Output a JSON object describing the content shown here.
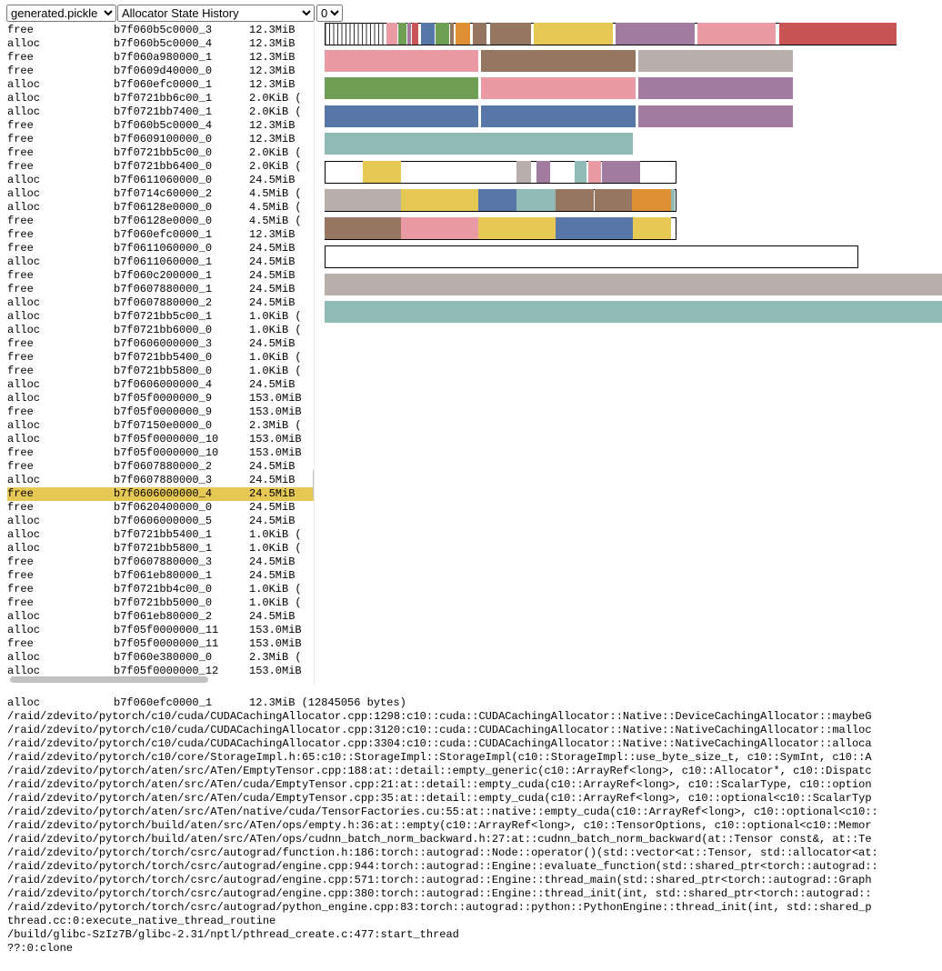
{
  "controls": {
    "file": "generated.pickle",
    "view": "Allocator State History",
    "device": "0"
  },
  "events": {
    "selected_row": 34,
    "rows": [
      [
        "free",
        "b7f060b5c0000_3",
        "12.3MiB"
      ],
      [
        "alloc",
        "b7f060b5c0000_4",
        "12.3MiB"
      ],
      [
        "free",
        "b7f060a980000_1",
        "12.3MiB"
      ],
      [
        "free",
        "b7f0609d40000_0",
        "12.3MiB"
      ],
      [
        "alloc",
        "b7f060efc0000_1",
        "12.3MiB"
      ],
      [
        "alloc",
        "b7f0721bb6c00_1",
        "2.0KiB ("
      ],
      [
        "alloc",
        "b7f0721bb7400_1",
        "2.0KiB ("
      ],
      [
        "free",
        "b7f060b5c0000_4",
        "12.3MiB"
      ],
      [
        "free",
        "b7f0609100000_0",
        "12.3MiB"
      ],
      [
        "free",
        "b7f0721bb5c00_0",
        "2.0KiB ("
      ],
      [
        "free",
        "b7f0721bb6400_0",
        "2.0KiB ("
      ],
      [
        "alloc",
        "b7f0611060000_0",
        "24.5MiB"
      ],
      [
        "alloc",
        "b7f0714c60000_2",
        "4.5MiB ("
      ],
      [
        "alloc",
        "b7f06128e0000_0",
        "4.5MiB ("
      ],
      [
        "free",
        "b7f06128e0000_0",
        "4.5MiB ("
      ],
      [
        "free",
        "b7f060efc0000_1",
        "12.3MiB"
      ],
      [
        "free",
        "b7f0611060000_0",
        "24.5MiB"
      ],
      [
        "alloc",
        "b7f0611060000_1",
        "24.5MiB"
      ],
      [
        "free",
        "b7f060c200000_1",
        "24.5MiB"
      ],
      [
        "free",
        "b7f0607880000_1",
        "24.5MiB"
      ],
      [
        "alloc",
        "b7f0607880000_2",
        "24.5MiB"
      ],
      [
        "alloc",
        "b7f0721bb5c00_1",
        "1.0KiB ("
      ],
      [
        "alloc",
        "b7f0721bb6000_0",
        "1.0KiB ("
      ],
      [
        "free",
        "b7f0606000000_3",
        "24.5MiB"
      ],
      [
        "free",
        "b7f0721bb5400_0",
        "1.0KiB ("
      ],
      [
        "free",
        "b7f0721bb5800_0",
        "1.0KiB ("
      ],
      [
        "alloc",
        "b7f0606000000_4",
        "24.5MiB"
      ],
      [
        "alloc",
        "b7f05f0000000_9",
        "153.0MiB"
      ],
      [
        "free",
        "b7f05f0000000_9",
        "153.0MiB"
      ],
      [
        "alloc",
        "b7f07150e0000_0",
        "2.3MiB ("
      ],
      [
        "alloc",
        "b7f05f0000000_10",
        "153.0MiB"
      ],
      [
        "free",
        "b7f05f0000000_10",
        "153.0MiB"
      ],
      [
        "free",
        "b7f0607880000_2",
        "24.5MiB"
      ],
      [
        "alloc",
        "b7f0607880000_3",
        "24.5MiB"
      ],
      [
        "free",
        "b7f0606000000_4",
        "24.5MiB"
      ],
      [
        "free",
        "b7f0620400000_0",
        "24.5MiB"
      ],
      [
        "alloc",
        "b7f0606000000_5",
        "24.5MiB"
      ],
      [
        "alloc",
        "b7f0721bb5400_1",
        "1.0KiB ("
      ],
      [
        "alloc",
        "b7f0721bb5800_1",
        "1.0KiB ("
      ],
      [
        "free",
        "b7f0607880000_3",
        "24.5MiB"
      ],
      [
        "free",
        "b7f061eb80000_1",
        "24.5MiB"
      ],
      [
        "free",
        "b7f0721bb4c00_0",
        "1.0KiB ("
      ],
      [
        "free",
        "b7f0721bb5000_0",
        "1.0KiB ("
      ],
      [
        "alloc",
        "b7f061eb80000_2",
        "24.5MiB"
      ],
      [
        "alloc",
        "b7f05f0000000_11",
        "153.0MiB"
      ],
      [
        "free",
        "b7f05f0000000_11",
        "153.0MiB"
      ],
      [
        "alloc",
        "b7f060e380000_0",
        "2.3MiB ("
      ],
      [
        "alloc",
        "b7f05f0000000_12",
        "153.0MiB"
      ]
    ]
  },
  "detail": {
    "header": [
      "alloc",
      "b7f060efc0000_1",
      "12.3MiB (12845056 bytes)"
    ],
    "lines": [
      "/raid/zdevito/pytorch/c10/cuda/CUDACachingAllocator.cpp:1298:c10::cuda::CUDACachingAllocator::Native::DeviceCachingAllocator::maybeG",
      "/raid/zdevito/pytorch/c10/cuda/CUDACachingAllocator.cpp:3120:c10::cuda::CUDACachingAllocator::Native::NativeCachingAllocator::malloc",
      "/raid/zdevito/pytorch/c10/cuda/CUDACachingAllocator.cpp:3304:c10::cuda::CUDACachingAllocator::Native::NativeCachingAllocator::alloca",
      "/raid/zdevito/pytorch/c10/core/StorageImpl.h:65:c10::StorageImpl::StorageImpl(c10::StorageImpl::use_byte_size_t, c10::SymInt, c10::A",
      "/raid/zdevito/pytorch/aten/src/ATen/EmptyTensor.cpp:188:at::detail::empty_generic(c10::ArrayRef<long>, c10::Allocator*, c10::Dispatc",
      "/raid/zdevito/pytorch/aten/src/ATen/cuda/EmptyTensor.cpp:21:at::detail::empty_cuda(c10::ArrayRef<long>, c10::ScalarType, c10::option",
      "/raid/zdevito/pytorch/aten/src/ATen/cuda/EmptyTensor.cpp:35:at::detail::empty_cuda(c10::ArrayRef<long>, c10::optional<c10::ScalarTyp",
      "/raid/zdevito/pytorch/aten/src/ATen/native/cuda/TensorFactories.cu:55:at::native::empty_cuda(c10::ArrayRef<long>, c10::optional<c10::",
      "/raid/zdevito/pytorch/build/aten/src/ATen/ops/empty.h:36:at::empty(c10::ArrayRef<long>, c10::TensorOptions, c10::optional<c10::Memor",
      "/raid/zdevito/pytorch/build/aten/src/ATen/ops/cudnn_batch_norm_backward.h:27:at::cudnn_batch_norm_backward(at::Tensor const&, at::Te",
      "/raid/zdevito/pytorch/torch/csrc/autograd/function.h:186:torch::autograd::Node::operator()(std::vector<at::Tensor, std::allocator<at:",
      "/raid/zdevito/pytorch/torch/csrc/autograd/engine.cpp:944:torch::autograd::Engine::evaluate_function(std::shared_ptr<torch::autograd::",
      "/raid/zdevito/pytorch/torch/csrc/autograd/engine.cpp:571:torch::autograd::Engine::thread_main(std::shared_ptr<torch::autograd::Graph",
      "/raid/zdevito/pytorch/torch/csrc/autograd/engine.cpp:380:torch::autograd::Engine::thread_init(int, std::shared_ptr<torch::autograd::",
      "/raid/zdevito/pytorch/torch/csrc/autograd/python_engine.cpp:83:torch::autograd::python::PythonEngine::thread_init(int, std::shared_p",
      "thread.cc:0:execute_native_thread_routine",
      "/build/glibc-SzIz7B/glibc-2.31/nptl/pthread_create.c:477:start_thread",
      "??:0:clone"
    ]
  }
}
